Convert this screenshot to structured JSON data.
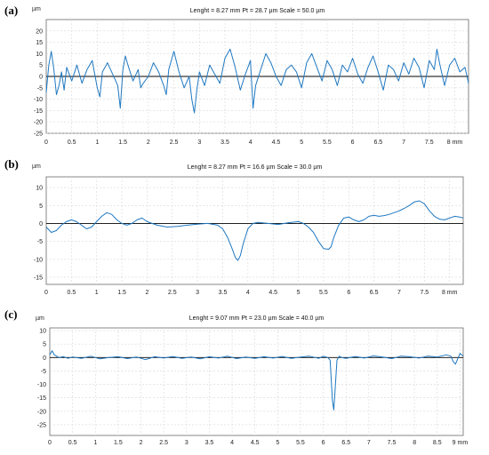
{
  "chart_data": [
    {
      "type": "line",
      "panel_label": "(a)",
      "header": "Lenght = 8.27 mm  Pt = 28.7 µm  Scale = 50.0 µm",
      "ylabel": "µm",
      "xlabel": "mm",
      "xlim": [
        0,
        8.27
      ],
      "ylim": [
        -25,
        25
      ],
      "x_ticks": [
        0,
        0.5,
        1,
        1.5,
        2,
        2.5,
        3,
        3.5,
        4,
        4.5,
        5,
        5.5,
        6,
        6.5,
        7,
        7.5,
        8
      ],
      "x_tick_labels": [
        "0",
        "0.5",
        "1",
        "1.5",
        "2",
        "2.5",
        "3",
        "3.5",
        "4",
        "4.5",
        "5",
        "5.5",
        "6",
        "6.5",
        "7",
        "7.5",
        "8 mm"
      ],
      "y_ticks": [
        -25,
        -20,
        -15,
        -10,
        -5,
        0,
        5,
        10,
        15,
        20
      ],
      "y_tick_labels": [
        "-25",
        "-20",
        "-15",
        "-10",
        "-5",
        "0",
        "5",
        "10",
        "15",
        "20"
      ],
      "grid": true,
      "line_color": "#1f78c1",
      "series": [
        {
          "x": [
            0,
            0.05,
            0.1,
            0.15,
            0.2,
            0.25,
            0.3,
            0.35,
            0.4,
            0.45,
            0.5,
            0.6,
            0.7,
            0.8,
            0.9,
            1,
            1.05,
            1.1,
            1.15,
            1.2,
            1.3,
            1.4,
            1.45,
            1.5,
            1.55,
            1.6,
            1.7,
            1.8,
            1.85,
            1.9,
            2,
            2.1,
            2.2,
            2.3,
            2.35,
            2.4,
            2.5,
            2.6,
            2.7,
            2.8,
            2.85,
            2.9,
            2.95,
            3,
            3.1,
            3.2,
            3.3,
            3.4,
            3.5,
            3.6,
            3.7,
            3.8,
            3.9,
            4,
            4.05,
            4.1,
            4.2,
            4.3,
            4.4,
            4.5,
            4.6,
            4.7,
            4.8,
            4.9,
            5,
            5.1,
            5.2,
            5.3,
            5.4,
            5.5,
            5.6,
            5.7,
            5.8,
            5.9,
            6,
            6.1,
            6.2,
            6.3,
            6.4,
            6.5,
            6.6,
            6.7,
            6.8,
            6.9,
            7,
            7.1,
            7.2,
            7.3,
            7.4,
            7.5,
            7.6,
            7.65,
            7.7,
            7.8,
            7.9,
            8,
            8.1,
            8.2,
            8.27
          ],
          "y": [
            -7,
            5,
            11,
            3,
            -8,
            -4,
            2,
            -6,
            4,
            1,
            -2,
            5,
            -3,
            3,
            7,
            -5,
            -9,
            2,
            4,
            6,
            1,
            -4,
            -14,
            3,
            9,
            5,
            -2,
            3,
            -5,
            -3,
            0,
            6,
            2,
            -4,
            -8,
            3,
            11,
            2,
            -5,
            0,
            -10,
            -16,
            -6,
            2,
            -4,
            5,
            1,
            -3,
            8,
            12,
            4,
            -6,
            1,
            7,
            -14,
            -4,
            3,
            10,
            6,
            0,
            -4,
            3,
            5,
            2,
            -5,
            6,
            10,
            4,
            -2,
            7,
            3,
            -4,
            5,
            2,
            8,
            1,
            -3,
            4,
            9,
            2,
            -6,
            5,
            3,
            -2,
            6,
            1,
            8,
            4,
            -5,
            7,
            3,
            12,
            6,
            -4,
            5,
            8,
            2,
            4,
            -3
          ]
        }
      ]
    },
    {
      "type": "line",
      "panel_label": "(b)",
      "header": "Lenght = 8.27 mm  Pt = 16.6 µm  Scale = 30.0 µm",
      "ylabel": "µm",
      "xlabel": "mm",
      "xlim": [
        0,
        8.27
      ],
      "ylim": [
        -17,
        13
      ],
      "x_ticks": [
        0,
        0.5,
        1,
        1.5,
        2,
        2.5,
        3,
        3.5,
        4,
        4.5,
        5,
        5.5,
        6,
        6.5,
        7,
        7.5,
        8
      ],
      "x_tick_labels": [
        "0",
        "0.5",
        "1",
        "1.5",
        "2",
        "2.5",
        "3",
        "3.5",
        "4",
        "4.5",
        "5",
        "5.5",
        "6",
        "6.5",
        "7",
        "7.5",
        "8 mm"
      ],
      "y_ticks": [
        -15,
        -10,
        -5,
        0,
        5,
        10
      ],
      "y_tick_labels": [
        "-15",
        "-10",
        "-5",
        "0",
        "5",
        "10"
      ],
      "grid": true,
      "line_color": "#1f78c1",
      "series": [
        {
          "x": [
            0,
            0.1,
            0.2,
            0.3,
            0.4,
            0.5,
            0.6,
            0.7,
            0.8,
            0.9,
            1,
            1.1,
            1.2,
            1.3,
            1.4,
            1.5,
            1.6,
            1.7,
            1.8,
            1.9,
            2,
            2.2,
            2.4,
            2.6,
            2.8,
            3,
            3.2,
            3.4,
            3.5,
            3.6,
            3.7,
            3.75,
            3.8,
            3.85,
            3.9,
            4,
            4.1,
            4.2,
            4.4,
            4.6,
            4.8,
            5,
            5.1,
            5.2,
            5.3,
            5.4,
            5.5,
            5.6,
            5.65,
            5.7,
            5.8,
            5.9,
            6,
            6.1,
            6.2,
            6.3,
            6.4,
            6.5,
            6.6,
            6.7,
            6.8,
            6.9,
            7,
            7.1,
            7.2,
            7.3,
            7.4,
            7.5,
            7.6,
            7.7,
            7.8,
            7.9,
            8,
            8.1,
            8.2,
            8.27
          ],
          "y": [
            -1,
            -2.5,
            -2,
            -0.5,
            0.5,
            1,
            0.5,
            -0.5,
            -1.5,
            -1,
            0.5,
            2,
            3,
            2.5,
            1,
            0,
            -0.5,
            0,
            1,
            1.5,
            0.5,
            -0.5,
            -1,
            -0.8,
            -0.5,
            -0.2,
            0,
            -0.5,
            -1.5,
            -4,
            -7.5,
            -9.5,
            -10.3,
            -9,
            -6,
            -1.5,
            0,
            0.3,
            0,
            -0.3,
            0.2,
            0.5,
            0,
            -1,
            -2.5,
            -5,
            -7,
            -7.2,
            -6.5,
            -4,
            -0.5,
            1.5,
            1.8,
            1,
            0.5,
            1,
            2,
            2.3,
            2,
            2.2,
            2.5,
            3,
            3.5,
            4.2,
            5,
            6,
            6.3,
            5.5,
            3.5,
            2,
            1.2,
            1,
            1.5,
            2,
            1.8,
            1.5
          ]
        }
      ]
    },
    {
      "type": "line",
      "panel_label": "(c)",
      "header": "Lenght = 9.07 mm  Pt = 23.0 µm  Scale = 40.0 µm",
      "ylabel": "µm",
      "xlabel": "mm",
      "xlim": [
        0,
        9.07
      ],
      "ylim": [
        -29,
        11
      ],
      "x_ticks": [
        0,
        0.5,
        1,
        1.5,
        2,
        2.5,
        3,
        3.5,
        4,
        4.5,
        5,
        5.5,
        6,
        6.5,
        7,
        7.5,
        8,
        8.5,
        9
      ],
      "x_tick_labels": [
        "0",
        "0.5",
        "1",
        "1.5",
        "2",
        "2.5",
        "3",
        "3.5",
        "4",
        "4.5",
        "5",
        "5.5",
        "6",
        "6.5",
        "7",
        "7.5",
        "8",
        "8.5",
        "9 mm"
      ],
      "y_ticks": [
        -25,
        -20,
        -15,
        -10,
        -5,
        0,
        5,
        10
      ],
      "y_tick_labels": [
        "-25",
        "-20",
        "-15",
        "-10",
        "-5",
        "0",
        "5",
        "10"
      ],
      "grid": true,
      "line_color": "#1f78c1",
      "series": [
        {
          "x": [
            0,
            0.05,
            0.1,
            0.2,
            0.3,
            0.4,
            0.5,
            0.7,
            0.9,
            1.1,
            1.3,
            1.5,
            1.7,
            1.9,
            2.1,
            2.3,
            2.5,
            2.7,
            2.9,
            3.1,
            3.3,
            3.5,
            3.7,
            3.9,
            4.1,
            4.3,
            4.5,
            4.7,
            4.9,
            5.1,
            5.3,
            5.5,
            5.7,
            5.9,
            6,
            6.1,
            6.15,
            6.2,
            6.23,
            6.26,
            6.3,
            6.35,
            6.4,
            6.5,
            6.7,
            6.9,
            7.1,
            7.3,
            7.5,
            7.7,
            7.9,
            8.1,
            8.3,
            8.5,
            8.7,
            8.8,
            8.85,
            8.9,
            8.95,
            9,
            9.07
          ],
          "y": [
            1,
            2.5,
            1,
            0,
            0.3,
            -0.3,
            0.2,
            -0.3,
            0.5,
            -0.5,
            0,
            0.3,
            -0.4,
            0.2,
            -0.8,
            0.3,
            -0.2,
            0.4,
            -0.3,
            0.2,
            -0.5,
            0.3,
            -0.2,
            0.5,
            -0.4,
            0.2,
            -0.3,
            0.3,
            -0.2,
            0.4,
            -0.3,
            0.2,
            0.5,
            -0.3,
            0.5,
            0,
            -1,
            -16,
            -19.5,
            -12,
            -1,
            0.5,
            0,
            -0.3,
            0.4,
            -0.2,
            0.6,
            0.2,
            -0.4,
            0.5,
            0.3,
            -0.2,
            0.5,
            0.2,
            1,
            0.5,
            -1.5,
            -2.5,
            -0.5,
            1.5,
            0.5
          ]
        }
      ]
    }
  ]
}
